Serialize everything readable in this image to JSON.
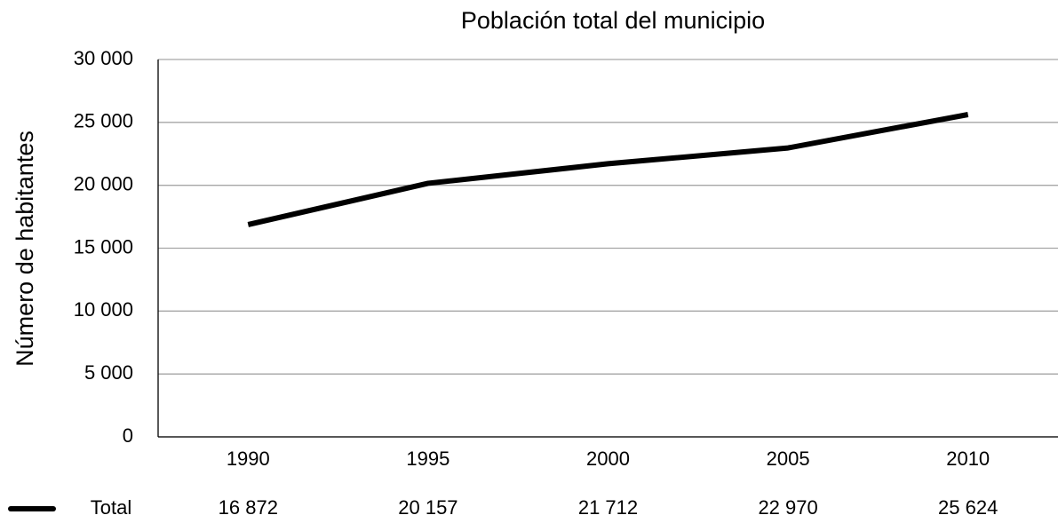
{
  "chart_data": {
    "type": "line",
    "title": "Población total del municipio",
    "y_label": "Número de habitantes",
    "categories": [
      "1990",
      "1995",
      "2000",
      "2005",
      "2010"
    ],
    "series": [
      {
        "name": "Total",
        "color": "#000000",
        "values": [
          16872,
          20157,
          21712,
          22970,
          25624
        ],
        "value_labels": [
          "16 872",
          "20 157",
          "21 712",
          "22 970",
          "25 624"
        ]
      }
    ],
    "ylim": [
      0,
      30000
    ],
    "yticks": [
      0,
      {
        "value": 5000,
        "label": "5 000"
      },
      {
        "value": 10000,
        "label": "10 000"
      },
      {
        "value": 15000,
        "label": "15 000"
      },
      {
        "value": 20000,
        "label": "20 000"
      },
      {
        "value": 25000,
        "label": "25 000"
      },
      {
        "value": 30000,
        "label": "30 000"
      }
    ],
    "grid": true
  }
}
